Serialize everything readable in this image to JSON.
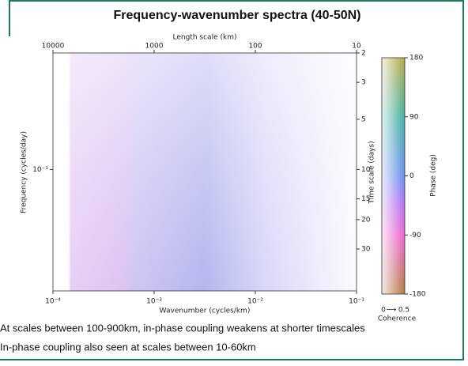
{
  "chart_data": {
    "type": "heatmap",
    "title": "Frequency-wavenumber spectra (40-50N)",
    "xlabel": "Wavenumber (cycles/km)",
    "ylabel": "Frequency (cycles/day)",
    "x2label": "Length scale (km)",
    "y2label": "Time scale (days)",
    "xscale": "log",
    "yscale": "log",
    "xlim": [
      0.0001,
      0.1
    ],
    "xticks": [
      {
        "value": 0.0001,
        "label": "10⁻⁴"
      },
      {
        "value": 0.001,
        "label": "10⁻³"
      },
      {
        "value": 0.01,
        "label": "10⁻²"
      },
      {
        "value": 0.1,
        "label": "10⁻¹"
      }
    ],
    "ylim": [
      0.0187,
      0.5
    ],
    "yticks": [
      {
        "value": 0.1,
        "label": "10⁻¹"
      }
    ],
    "x2lim": [
      10000,
      10
    ],
    "x2ticks": [
      10000,
      1000,
      100,
      10
    ],
    "y2lim": [
      53.5,
      2
    ],
    "y2ticks": [
      2,
      3,
      5,
      10,
      15,
      20,
      30
    ],
    "colorbar": {
      "label": "Phase (deg)",
      "lim": [
        -180,
        180
      ],
      "ticks": [
        180,
        90,
        0,
        -90,
        -180
      ],
      "coherence_label": "Coherence",
      "coherence_lim": [
        0,
        0.5
      ]
    },
    "annotations": [
      "At scales between 100-900km, in-phase coupling weakens at shorter timescales",
      "In-phase coupling also seen at scales between 10-60km"
    ]
  }
}
